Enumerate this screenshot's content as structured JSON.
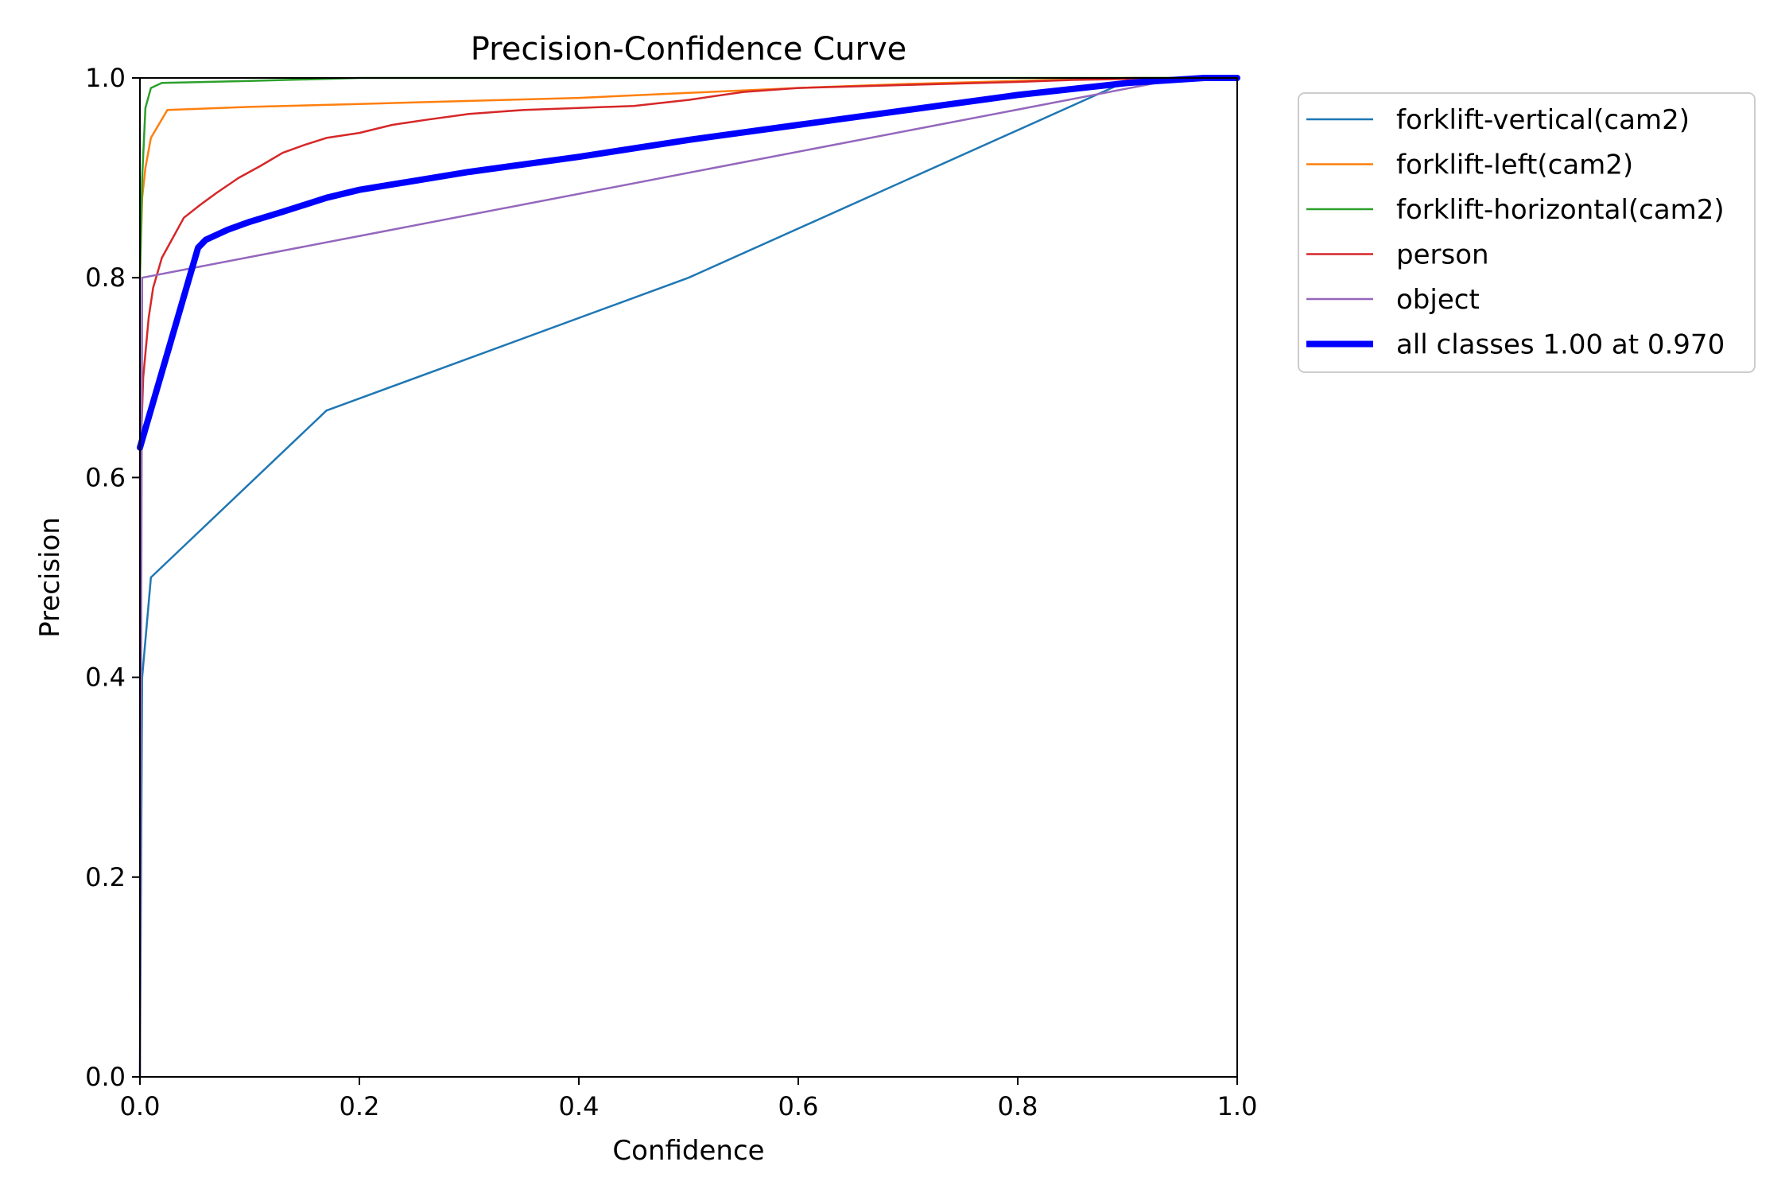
{
  "chart_data": {
    "type": "line",
    "title": "Precision-Confidence Curve",
    "xlabel": "Confidence",
    "ylabel": "Precision",
    "xlim": [
      0.0,
      1.0
    ],
    "ylim": [
      0.0,
      1.0
    ],
    "xticks": [
      "0.0",
      "0.2",
      "0.4",
      "0.6",
      "0.8",
      "1.0"
    ],
    "yticks": [
      "0.0",
      "0.2",
      "0.4",
      "0.6",
      "0.8",
      "1.0"
    ],
    "grid": false,
    "legend_position": "outside-right-top",
    "series": [
      {
        "name": "forklift-vertical(cam2)",
        "color": "#1f77b4",
        "x": [
          0.0,
          0.002,
          0.01,
          0.17,
          0.5,
          0.906,
          0.95,
          1.0
        ],
        "y": [
          0.0,
          0.4,
          0.5,
          0.667,
          0.8,
          1.0,
          1.0,
          1.0
        ]
      },
      {
        "name": "forklift-left(cam2)",
        "color": "#ff7f0e",
        "x": [
          0.0,
          0.002,
          0.005,
          0.01,
          0.025,
          0.1,
          0.2,
          0.3,
          0.4,
          0.5,
          0.6,
          0.7,
          0.8,
          0.9,
          1.0
        ],
        "y": [
          0.8,
          0.88,
          0.91,
          0.94,
          0.968,
          0.971,
          0.974,
          0.977,
          0.98,
          0.985,
          0.99,
          0.994,
          0.997,
          1.0,
          1.0
        ]
      },
      {
        "name": "forklift-horizontal(cam2)",
        "color": "#2ca02c",
        "x": [
          0.0,
          0.002,
          0.005,
          0.01,
          0.02,
          0.1,
          0.2,
          0.4,
          0.7,
          1.0
        ],
        "y": [
          0.8,
          0.9,
          0.97,
          0.99,
          0.995,
          0.997,
          1.0,
          1.0,
          1.0,
          1.0
        ]
      },
      {
        "name": "person",
        "color": "#d62728",
        "x": [
          0.0,
          0.003,
          0.008,
          0.012,
          0.02,
          0.03,
          0.04,
          0.055,
          0.07,
          0.09,
          0.11,
          0.13,
          0.15,
          0.17,
          0.2,
          0.23,
          0.26,
          0.3,
          0.35,
          0.4,
          0.45,
          0.5,
          0.55,
          0.6,
          0.7,
          0.8,
          0.85,
          0.9,
          0.95,
          1.0
        ],
        "y": [
          0.6,
          0.7,
          0.76,
          0.79,
          0.82,
          0.84,
          0.86,
          0.873,
          0.885,
          0.9,
          0.912,
          0.925,
          0.933,
          0.94,
          0.945,
          0.953,
          0.958,
          0.964,
          0.968,
          0.97,
          0.972,
          0.978,
          0.986,
          0.99,
          0.993,
          0.996,
          0.998,
          0.999,
          1.0,
          1.0
        ]
      },
      {
        "name": "object",
        "color": "#9467bd",
        "x": [
          0.0,
          0.002,
          0.95,
          1.0
        ],
        "y": [
          0.0,
          0.8,
          1.0,
          1.0
        ]
      },
      {
        "name": "all classes 1.00 at 0.970",
        "color": "#0000ff",
        "width": "thick",
        "x": [
          0.0,
          0.053,
          0.06,
          0.08,
          0.1,
          0.13,
          0.17,
          0.2,
          0.3,
          0.4,
          0.5,
          0.6,
          0.7,
          0.8,
          0.9,
          0.97,
          1.0
        ],
        "y": [
          0.63,
          0.83,
          0.838,
          0.848,
          0.856,
          0.866,
          0.88,
          0.888,
          0.906,
          0.921,
          0.938,
          0.953,
          0.968,
          0.983,
          0.995,
          1.0,
          1.0
        ]
      }
    ]
  }
}
